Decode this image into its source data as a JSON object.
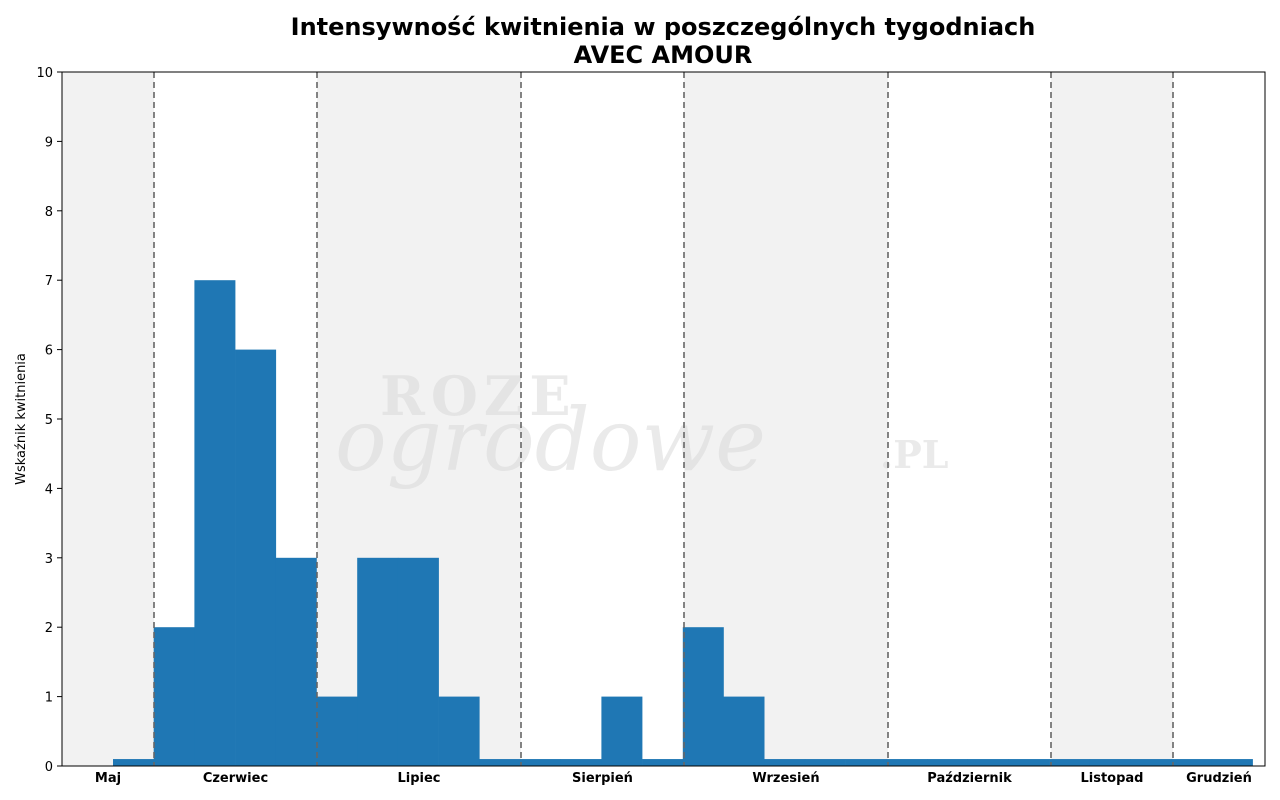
{
  "chart_data": {
    "type": "bar",
    "title": "Intensywność kwitnienia w poszczególnych tygodniach",
    "subtitle": "AVEC AMOUR",
    "ylabel": "Wskaźnik kwitnienia",
    "xlabel": "",
    "ylim": [
      0,
      10
    ],
    "yticks": [
      "0",
      "1",
      "2",
      "3",
      "4",
      "5",
      "6",
      "7",
      "8",
      "9",
      "10"
    ],
    "grid": false,
    "weeks": 28,
    "values": [
      0.1,
      2,
      7,
      6,
      3,
      1,
      3,
      3,
      1,
      0.1,
      0.1,
      0.1,
      1,
      0.1,
      2,
      1,
      0.1,
      0.1,
      0.1,
      0.1,
      0.1,
      0.1,
      0.1,
      0.1,
      0.1,
      0.1,
      0.1,
      0.1
    ],
    "bar_color": "#1f77b4",
    "shade_color": "#f2f2f2",
    "divider_color": "#666666",
    "months": [
      {
        "label": "Maj",
        "shaded": true
      },
      {
        "label": "Czerwiec",
        "shaded": false
      },
      {
        "label": "Lipiec",
        "shaded": true
      },
      {
        "label": "Sierpień",
        "shaded": false
      },
      {
        "label": "Wrzesień",
        "shaded": true
      },
      {
        "label": "Październik",
        "shaded": false
      },
      {
        "label": "Listopad",
        "shaded": true
      },
      {
        "label": "Grudzień",
        "shaded": false
      }
    ],
    "watermark": [
      "ROZE",
      "ogrodowe",
      ".PL"
    ]
  }
}
